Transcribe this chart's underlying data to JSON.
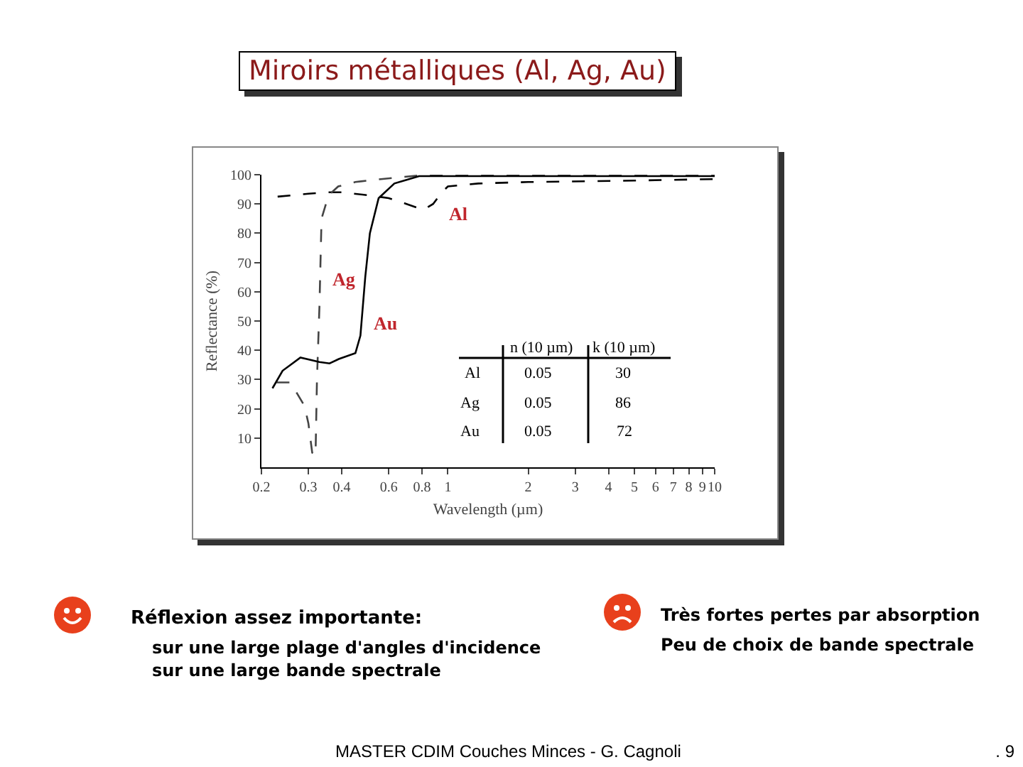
{
  "chart_data": {
    "type": "line",
    "title": "Miroirs métalliques (Al, Ag, Au)",
    "xlabel": "Wavelength (µm)",
    "ylabel": "Reflectance (%)",
    "log": "x",
    "grid": false,
    "legend": false,
    "marker": "none",
    "xlim": [
      0.2,
      10
    ],
    "xticks": [
      0.2,
      0.3,
      0.4,
      0.6,
      0.8,
      1,
      2,
      3,
      4,
      5,
      6,
      7,
      8,
      9,
      10
    ],
    "ylim": [
      0,
      100
    ],
    "yticks": [
      10,
      20,
      30,
      40,
      50,
      60,
      70,
      80,
      90,
      100
    ],
    "series": [
      {
        "name": "Al",
        "color": "#000000",
        "line_style": "dashed",
        "x": [
          0.23,
          0.3,
          0.35,
          0.4,
          0.5,
          0.6,
          0.7,
          0.81,
          0.88,
          0.95,
          1.0,
          1.3,
          2,
          5,
          10
        ],
        "values": [
          92.5,
          93.5,
          94,
          94,
          93,
          92,
          90,
          88,
          90,
          94,
          96,
          97,
          97.5,
          98,
          98.5
        ]
      },
      {
        "name": "Ag",
        "color": "#444444",
        "line_style": "dashed",
        "x": [
          0.228,
          0.257,
          0.29,
          0.3,
          0.31,
          0.319,
          0.323,
          0.33,
          0.336,
          0.357,
          0.388,
          0.45,
          0.561,
          0.84,
          2,
          10
        ],
        "values": [
          29,
          29,
          21,
          15,
          5,
          4,
          30,
          55,
          85,
          93,
          96,
          97.5,
          98.5,
          100,
          100,
          100
        ]
      },
      {
        "name": "Au",
        "color": "#000000",
        "line_style": "solid",
        "x": [
          0.22,
          0.24,
          0.28,
          0.33,
          0.36,
          0.39,
          0.45,
          0.47,
          0.49,
          0.51,
          0.55,
          0.63,
          0.78,
          2,
          10
        ],
        "values": [
          27,
          33,
          37.5,
          36,
          35.5,
          37,
          39,
          45,
          65,
          80,
          92,
          97,
          99.5,
          99.5,
          99.5
        ]
      }
    ],
    "annotations": [
      "n (10 µm)",
      "k (10 µm)",
      "Al",
      "0.05",
      "30",
      "Ag",
      "0.05",
      "86",
      "Au",
      "0.05",
      "72",
      "Réflexion assez importante:",
      "sur une large plage d'angles d'incidence",
      "sur une large bande spectrale",
      "Très fortes pertes par absorption",
      "Peu de choix de bande spectrale",
      "MASTER CDIM Couches Minces -  G. Cagnoli",
      ". 9"
    ]
  }
}
